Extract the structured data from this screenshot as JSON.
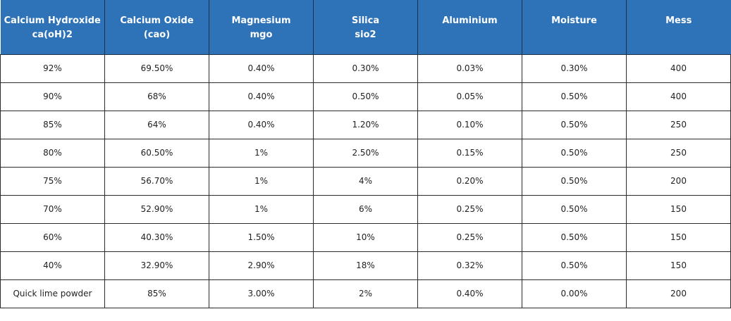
{
  "table": {
    "headers": [
      {
        "line1": "Calcium Hydroxide",
        "line2": "ca(oH)2"
      },
      {
        "line1": "Calcium Oxide",
        "line2": "(cao)"
      },
      {
        "line1": "Magnesium",
        "line2": "mgo"
      },
      {
        "line1": "Silica",
        "line2": "sio2"
      },
      {
        "line1": "Aluminium",
        "line2": ""
      },
      {
        "line1": "Moisture",
        "line2": ""
      },
      {
        "line1": "Mess",
        "line2": ""
      }
    ],
    "rows": [
      [
        "92%",
        "69.50%",
        "0.40%",
        "0.30%",
        "0.03%",
        "0.30%",
        "400"
      ],
      [
        "90%",
        "68%",
        "0.40%",
        "0.50%",
        "0.05%",
        "0.50%",
        "400"
      ],
      [
        "85%",
        "64%",
        "0.40%",
        "1.20%",
        "0.10%",
        "0.50%",
        "250"
      ],
      [
        "80%",
        "60.50%",
        "1%",
        "2.50%",
        "0.15%",
        "0.50%",
        "250"
      ],
      [
        "75%",
        "56.70%",
        "1%",
        "4%",
        "0.20%",
        "0.50%",
        "200"
      ],
      [
        "70%",
        "52.90%",
        "1%",
        "6%",
        "0.25%",
        "0.50%",
        "150"
      ],
      [
        "60%",
        "40.30%",
        "1.50%",
        "10%",
        "0.25%",
        "0.50%",
        "150"
      ],
      [
        "40%",
        "32.90%",
        "2.90%",
        "18%",
        "0.32%",
        "0.50%",
        "150"
      ],
      [
        "Quick lime powder",
        "85%",
        "3.00%",
        "2%",
        "0.40%",
        "0.00%",
        "200"
      ]
    ]
  },
  "colors": {
    "header_bg": "#2e73b8",
    "header_text": "#ffffff",
    "grid_line": "#2b2b2b"
  }
}
